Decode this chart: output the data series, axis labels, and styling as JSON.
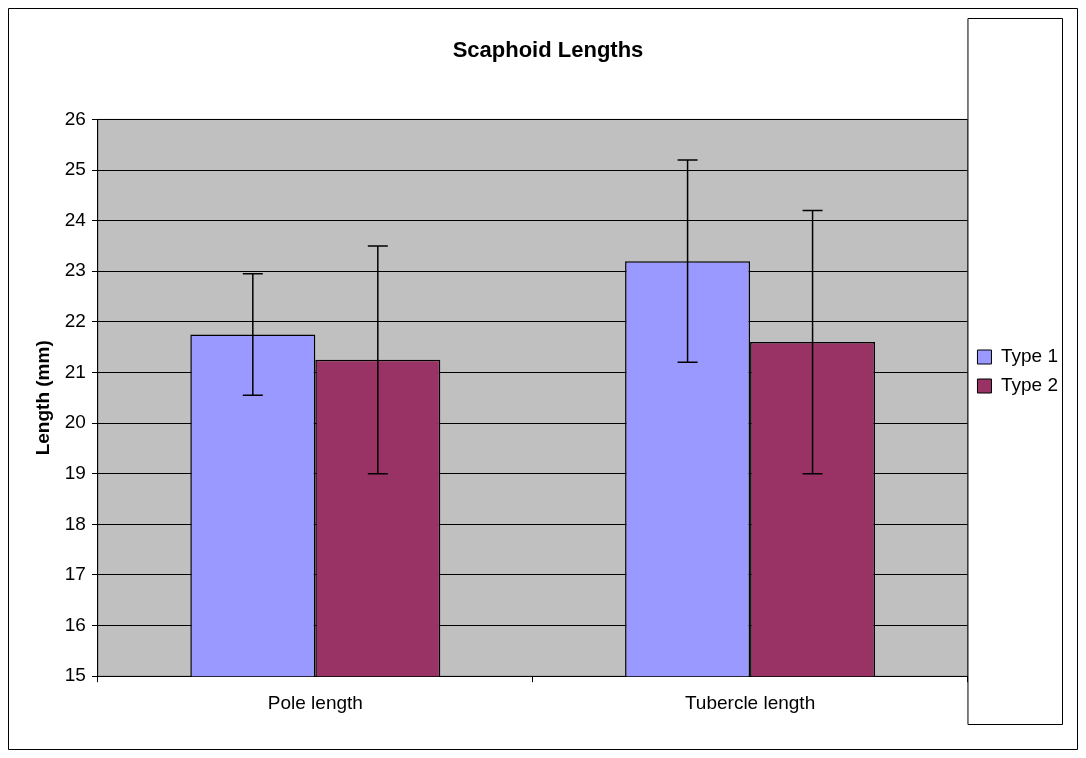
{
  "chart_data": {
    "type": "bar",
    "title": "Scaphoid Lengths",
    "ylabel": "Length (mm)",
    "categories": [
      "Pole length",
      "Tubercle length"
    ],
    "series": [
      {
        "name": "Type 1",
        "color": "#9999ff",
        "values": [
          21.75,
          23.2
        ],
        "errors": [
          1.2,
          2.0
        ]
      },
      {
        "name": "Type 2",
        "color": "#993366",
        "values": [
          21.25,
          21.6
        ],
        "errors": [
          2.25,
          2.6
        ]
      }
    ],
    "ylim": [
      15,
      26
    ],
    "yticks": [
      15,
      16,
      17,
      18,
      19,
      20,
      21,
      22,
      23,
      24,
      25,
      26
    ],
    "grid": "y",
    "legend": "right"
  }
}
